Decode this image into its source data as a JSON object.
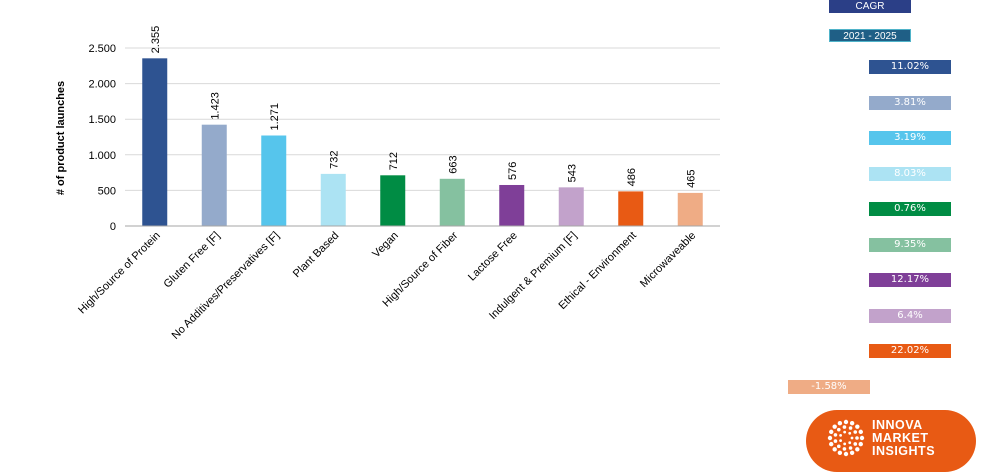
{
  "chart_data": {
    "type": "bar",
    "ylabel": "# of product launches",
    "categories": [
      "High/Source of Protein",
      "Gluten Free [F]",
      "No Additives/Preservatives [F]",
      "Plant Based",
      "Vegan",
      "High/Source of Fiber",
      "Lactose Free",
      "Indulgent & Premium [F]",
      "Ethical - Environment",
      "Microwaveable"
    ],
    "values": [
      2355,
      1423,
      1271,
      732,
      712,
      663,
      576,
      543,
      486,
      465
    ],
    "value_labels": [
      "2.355",
      "1.423",
      "1.271",
      "732",
      "712",
      "663",
      "576",
      "543",
      "486",
      "465"
    ],
    "colors": [
      "#2e5391",
      "#94aacb",
      "#56c5ec",
      "#ace3f3",
      "#008c44",
      "#85c1a0",
      "#7f3f98",
      "#c2a2cb",
      "#e85a14",
      "#efac85"
    ],
    "ylim": [
      0,
      2500
    ],
    "yticks": [
      0,
      500,
      1000,
      1500,
      2000,
      2500
    ],
    "ytick_labels": [
      "0",
      "500",
      "1.000",
      "1.500",
      "2.000",
      "2.500"
    ],
    "grid": true,
    "legend": "none"
  },
  "cagr": {
    "title": "CAGR",
    "period": "2021 - 2025",
    "values": [
      "11.02%",
      "3.81%",
      "3.19%",
      "8.03%",
      "0.76%",
      "9.35%",
      "12.17%",
      "6.4%",
      "22.02%",
      "-1.58%"
    ],
    "signs": [
      1,
      1,
      1,
      1,
      1,
      1,
      1,
      1,
      1,
      -1
    ]
  },
  "logo": {
    "lines": [
      "INNOVA",
      "MARKET",
      "INSIGHTS"
    ],
    "icon": "dotted-circle-icon"
  }
}
